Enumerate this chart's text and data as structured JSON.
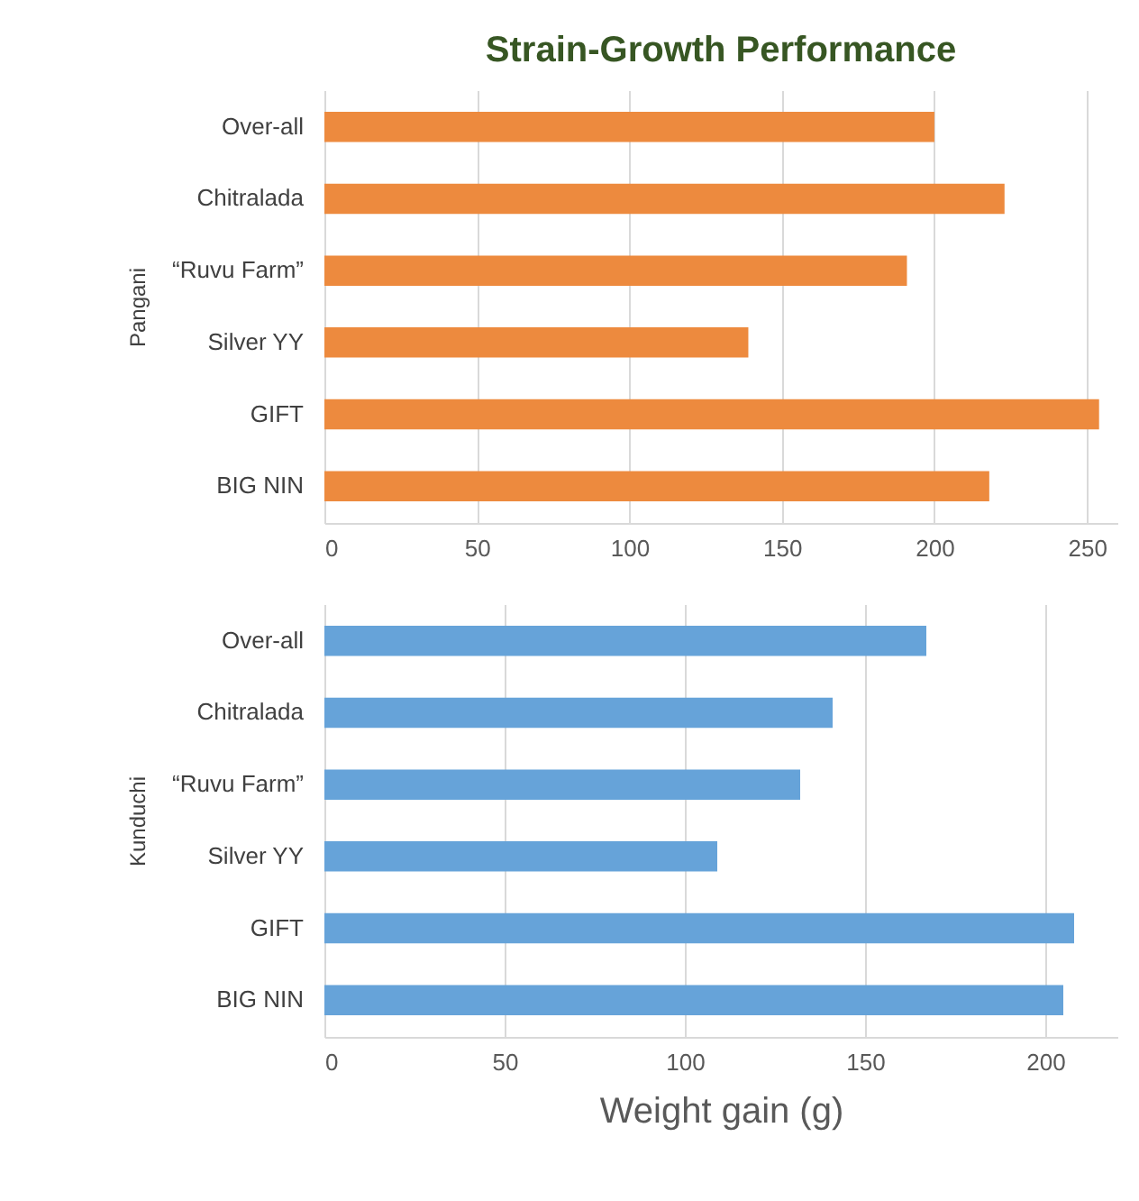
{
  "chart_data": [
    {
      "type": "bar",
      "orientation": "horizontal",
      "title": "Strain-Growth Performance",
      "ylabel": "Pangani",
      "categories": [
        "Over-all",
        "Chitralada",
        "“Ruvu Farm”",
        "Silver YY",
        "GIFT",
        "BIG NIN"
      ],
      "values": [
        200,
        223,
        191,
        139,
        254,
        218
      ],
      "color": "#ed8a3e",
      "xlim": [
        0,
        260
      ],
      "xticks": [
        0,
        50,
        100,
        150,
        200,
        250
      ],
      "grid": "x"
    },
    {
      "type": "bar",
      "orientation": "horizontal",
      "xlabel": "Weight gain (g)",
      "ylabel": "Kunduchi",
      "categories": [
        "Over-all",
        "Chitralada",
        "“Ruvu Farm”",
        "Silver YY",
        "GIFT",
        "BIG NIN"
      ],
      "values": [
        167,
        141,
        132,
        109,
        208,
        205
      ],
      "color": "#66a3d9",
      "xlim": [
        0,
        220
      ],
      "xticks": [
        0,
        50,
        100,
        150,
        200
      ],
      "grid": "x"
    }
  ]
}
